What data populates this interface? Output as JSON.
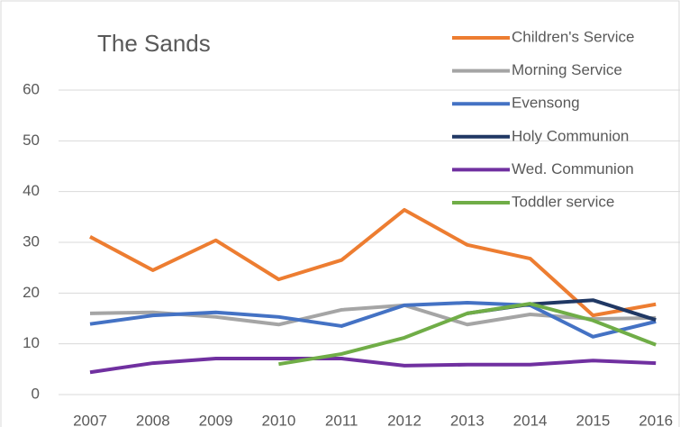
{
  "chart_data": {
    "type": "line",
    "title": "The Sands",
    "categories": [
      "2007",
      "2008",
      "2009",
      "2010",
      "2011",
      "2012",
      "2013",
      "2014",
      "2015",
      "2016"
    ],
    "series": [
      {
        "name": "Children's Service",
        "color": "#ed7d31",
        "values": [
          31.1,
          24.5,
          30.4,
          22.7,
          26.5,
          36.4,
          29.5,
          26.8,
          15.6,
          17.8
        ]
      },
      {
        "name": "Morning Service",
        "color": "#a5a5a5",
        "values": [
          16.0,
          16.2,
          15.3,
          13.8,
          16.7,
          17.6,
          13.8,
          15.8,
          14.9,
          15.1
        ]
      },
      {
        "name": "Evensong",
        "color": "#4472c4",
        "values": [
          13.9,
          15.6,
          16.2,
          15.3,
          13.5,
          17.6,
          18.1,
          17.6,
          11.4,
          14.4
        ]
      },
      {
        "name": "Holy Communion",
        "color": "#203864",
        "values": [
          null,
          null,
          null,
          null,
          null,
          null,
          16.0,
          17.8,
          18.6,
          14.7
        ]
      },
      {
        "name": "Wed. Communion",
        "color": "#7030a0",
        "values": [
          4.4,
          6.2,
          7.1,
          7.1,
          7.1,
          5.7,
          5.9,
          5.9,
          6.7,
          6.2
        ]
      },
      {
        "name": "Toddler service",
        "color": "#70ad47",
        "values": [
          null,
          null,
          null,
          6.0,
          8.0,
          11.2,
          16.0,
          17.9,
          14.6,
          9.8
        ]
      }
    ],
    "ylim": [
      0,
      60
    ],
    "yticks": [
      0,
      10,
      20,
      30,
      40,
      50,
      60
    ],
    "grid": true
  }
}
